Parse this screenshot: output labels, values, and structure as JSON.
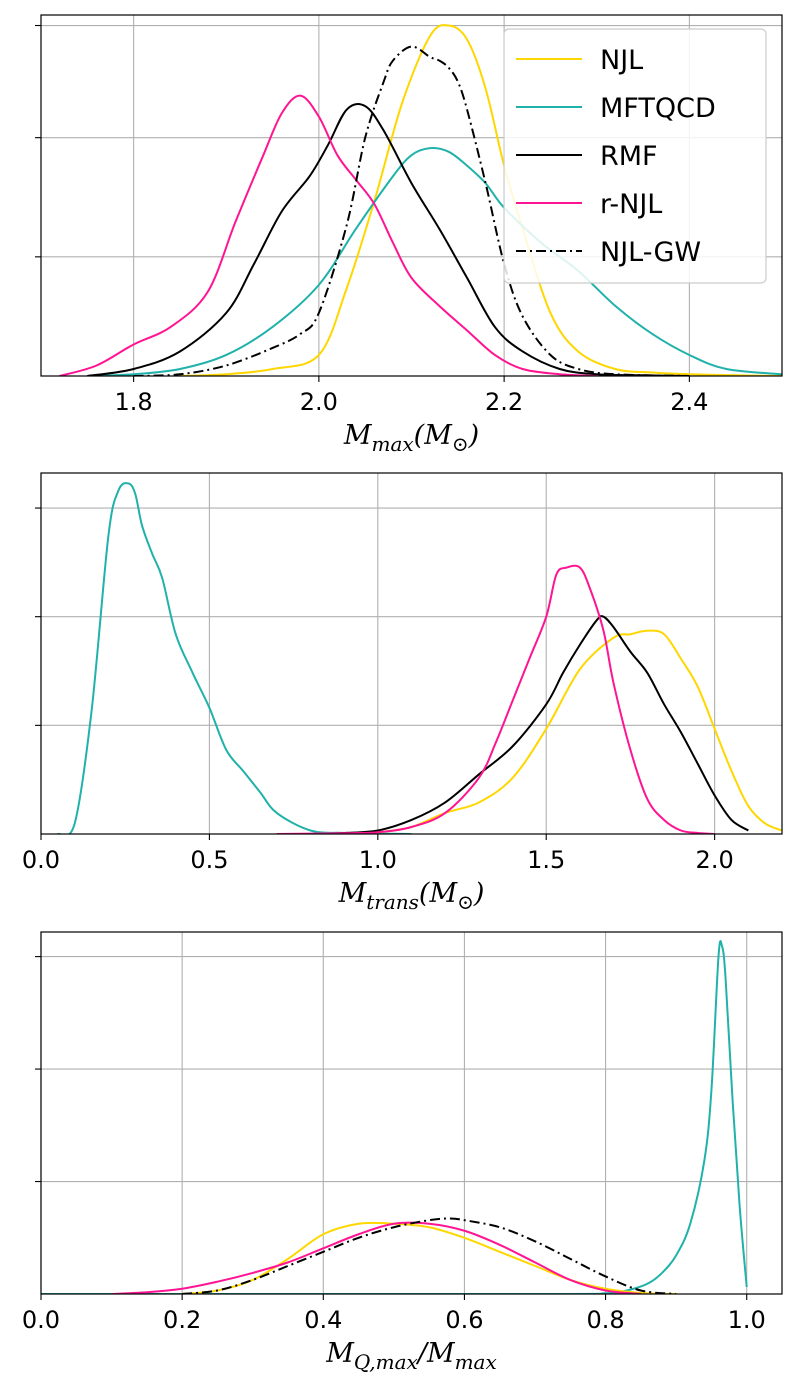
{
  "colors": {
    "NJL": "#FFD700",
    "MFTQCD": "#20B2AA",
    "RMF": "#000000",
    "r-NJL": "#FF1493",
    "NJL-GW": "#000000",
    "grid": "#b0b0b0"
  },
  "chart_data": [
    {
      "type": "line",
      "kind": "kde",
      "xlabel": "M_max(M_⊙)",
      "xlim": [
        1.7,
        2.5
      ],
      "ylim": [
        0,
        1.03
      ],
      "xticks": [
        1.8,
        2.0,
        2.2,
        2.4
      ],
      "xtick_labels": [
        "1.8",
        "2.0",
        "2.2",
        "2.4"
      ],
      "ygrid": [
        0.34,
        0.68,
        1.0
      ],
      "grid": true,
      "y_tick_labels_shown": false,
      "legend": {
        "placement": "top-right",
        "entries": [
          {
            "label": "NJL",
            "style": "solid",
            "color": "#FFD700"
          },
          {
            "label": "MFTQCD",
            "style": "solid",
            "color": "#20B2AA"
          },
          {
            "label": "RMF",
            "style": "solid",
            "color": "#000000"
          },
          {
            "label": "r-NJL",
            "style": "solid",
            "color": "#FF1493"
          },
          {
            "label": "NJL-GW",
            "style": "dashdot",
            "color": "#000000"
          }
        ]
      },
      "series": [
        {
          "name": "NJL",
          "style": "solid",
          "color": "#FFD700",
          "x": [
            1.85,
            1.9,
            1.95,
            2.0,
            2.03,
            2.06,
            2.09,
            2.12,
            2.14,
            2.16,
            2.18,
            2.2,
            2.22,
            2.25,
            2.28,
            2.32,
            2.36,
            2.4,
            2.45,
            2.5
          ],
          "y": [
            0,
            0.005,
            0.02,
            0.06,
            0.25,
            0.5,
            0.78,
            0.97,
            1.0,
            0.96,
            0.82,
            0.6,
            0.42,
            0.18,
            0.07,
            0.02,
            0.01,
            0.005,
            0.002,
            0
          ]
        },
        {
          "name": "MFTQCD",
          "style": "solid",
          "color": "#20B2AA",
          "x": [
            1.75,
            1.8,
            1.85,
            1.9,
            1.95,
            2.0,
            2.04,
            2.08,
            2.1,
            2.12,
            2.14,
            2.16,
            2.18,
            2.2,
            2.24,
            2.28,
            2.32,
            2.36,
            2.4,
            2.44,
            2.5
          ],
          "y": [
            0,
            0.005,
            0.02,
            0.06,
            0.14,
            0.26,
            0.42,
            0.57,
            0.63,
            0.65,
            0.64,
            0.6,
            0.55,
            0.48,
            0.38,
            0.3,
            0.2,
            0.12,
            0.06,
            0.02,
            0.005
          ]
        },
        {
          "name": "RMF",
          "style": "solid",
          "color": "#000000",
          "x": [
            1.75,
            1.8,
            1.85,
            1.9,
            1.93,
            1.96,
            1.99,
            2.01,
            2.03,
            2.05,
            2.07,
            2.1,
            2.13,
            2.16,
            2.19,
            2.22,
            2.26,
            2.3,
            2.35,
            2.4
          ],
          "y": [
            0,
            0.02,
            0.07,
            0.18,
            0.32,
            0.47,
            0.57,
            0.66,
            0.76,
            0.77,
            0.7,
            0.55,
            0.42,
            0.28,
            0.14,
            0.07,
            0.02,
            0.005,
            0.002,
            0
          ]
        },
        {
          "name": "r-NJL",
          "style": "solid",
          "color": "#FF1493",
          "x": [
            1.72,
            1.76,
            1.8,
            1.84,
            1.88,
            1.91,
            1.94,
            1.96,
            1.98,
            2.0,
            2.02,
            2.04,
            2.06,
            2.08,
            2.1,
            2.13,
            2.16,
            2.19,
            2.22,
            2.26,
            2.3
          ],
          "y": [
            0,
            0.03,
            0.09,
            0.14,
            0.24,
            0.44,
            0.63,
            0.75,
            0.8,
            0.74,
            0.63,
            0.56,
            0.49,
            0.38,
            0.28,
            0.2,
            0.13,
            0.06,
            0.02,
            0.005,
            0
          ]
        },
        {
          "name": "NJL-GW",
          "style": "dashdot",
          "color": "#000000",
          "x": [
            1.8,
            1.85,
            1.9,
            1.95,
            1.98,
            2.0,
            2.03,
            2.05,
            2.07,
            2.08,
            2.1,
            2.12,
            2.13,
            2.14,
            2.15,
            2.16,
            2.18,
            2.2,
            2.22,
            2.25,
            2.28,
            2.32,
            2.4
          ],
          "y": [
            0,
            0.005,
            0.03,
            0.08,
            0.12,
            0.18,
            0.43,
            0.68,
            0.84,
            0.9,
            0.94,
            0.91,
            0.9,
            0.88,
            0.84,
            0.76,
            0.55,
            0.32,
            0.17,
            0.06,
            0.02,
            0.005,
            0
          ]
        }
      ]
    },
    {
      "type": "line",
      "kind": "kde",
      "xlabel": "M_trans(M_⊙)",
      "xlim": [
        0.0,
        2.2
      ],
      "ylim": [
        0,
        1.03
      ],
      "xticks": [
        0.0,
        0.5,
        1.0,
        1.5,
        2.0
      ],
      "xtick_labels": [
        "0.0",
        "0.5",
        "1.0",
        "1.5",
        "2.0"
      ],
      "ygrid": [
        0.31,
        0.62,
        0.93
      ],
      "grid": true,
      "y_tick_labels_shown": false,
      "series": [
        {
          "name": "MFTQCD",
          "style": "solid",
          "color": "#20B2AA",
          "x": [
            0.05,
            0.1,
            0.15,
            0.2,
            0.23,
            0.26,
            0.28,
            0.3,
            0.33,
            0.36,
            0.4,
            0.45,
            0.5,
            0.55,
            0.6,
            0.65,
            0.7,
            0.8,
            0.9,
            1.0,
            1.1
          ],
          "y": [
            0,
            0.03,
            0.35,
            0.85,
            0.98,
            1.0,
            0.97,
            0.88,
            0.8,
            0.73,
            0.57,
            0.46,
            0.36,
            0.24,
            0.18,
            0.12,
            0.06,
            0.01,
            0.003,
            0.001,
            0
          ]
        },
        {
          "name": "NJL",
          "style": "solid",
          "color": "#FFD700",
          "x": [
            0.9,
            1.0,
            1.1,
            1.2,
            1.3,
            1.4,
            1.5,
            1.6,
            1.7,
            1.75,
            1.8,
            1.85,
            1.9,
            1.95,
            2.0,
            2.05,
            2.1,
            2.15,
            2.2
          ],
          "y": [
            0,
            0.005,
            0.02,
            0.06,
            0.09,
            0.16,
            0.3,
            0.47,
            0.56,
            0.57,
            0.58,
            0.57,
            0.5,
            0.42,
            0.3,
            0.18,
            0.08,
            0.03,
            0.01
          ]
        },
        {
          "name": "RMF",
          "style": "solid",
          "color": "#000000",
          "x": [
            0.8,
            0.9,
            1.0,
            1.1,
            1.2,
            1.3,
            1.4,
            1.5,
            1.55,
            1.6,
            1.65,
            1.67,
            1.7,
            1.75,
            1.8,
            1.85,
            1.9,
            1.95,
            2.0,
            2.05,
            2.1
          ],
          "y": [
            0,
            0.003,
            0.01,
            0.04,
            0.09,
            0.17,
            0.25,
            0.37,
            0.46,
            0.54,
            0.61,
            0.62,
            0.59,
            0.52,
            0.46,
            0.37,
            0.29,
            0.2,
            0.11,
            0.04,
            0.01
          ]
        },
        {
          "name": "r-NJL",
          "style": "solid",
          "color": "#FF1493",
          "x": [
            0.7,
            0.9,
            1.0,
            1.1,
            1.2,
            1.3,
            1.35,
            1.4,
            1.45,
            1.5,
            1.53,
            1.56,
            1.6,
            1.63,
            1.67,
            1.7,
            1.75,
            1.8,
            1.85,
            1.9,
            1.95,
            2.0
          ],
          "y": [
            0,
            0.002,
            0.005,
            0.02,
            0.06,
            0.16,
            0.26,
            0.38,
            0.5,
            0.62,
            0.74,
            0.76,
            0.76,
            0.7,
            0.58,
            0.43,
            0.24,
            0.1,
            0.04,
            0.01,
            0.003,
            0
          ]
        }
      ]
    },
    {
      "type": "line",
      "kind": "kde",
      "xlabel": "M_{Q,max}/M_max",
      "xlim": [
        0.0,
        1.05
      ],
      "ylim": [
        0,
        1.03
      ],
      "xticks": [
        0.0,
        0.2,
        0.4,
        0.6,
        0.8,
        1.0
      ],
      "xtick_labels": [
        "0.0",
        "0.2",
        "0.4",
        "0.6",
        "0.8",
        "1.0"
      ],
      "ygrid": [
        0.32,
        0.64,
        0.96
      ],
      "grid": true,
      "y_tick_labels_shown": false,
      "series": [
        {
          "name": "MFTQCD",
          "style": "solid",
          "color": "#20B2AA",
          "x": [
            0.0,
            0.7,
            0.8,
            0.83,
            0.86,
            0.88,
            0.9,
            0.92,
            0.94,
            0.95,
            0.96,
            0.965,
            0.97,
            0.98,
            0.99,
            1.0
          ],
          "y": [
            0,
            0,
            0.002,
            0.01,
            0.03,
            0.06,
            0.11,
            0.2,
            0.38,
            0.58,
            0.96,
            0.99,
            0.9,
            0.55,
            0.25,
            0.02
          ]
        },
        {
          "name": "NJL",
          "style": "solid",
          "color": "#FFD700",
          "x": [
            0.2,
            0.25,
            0.3,
            0.35,
            0.4,
            0.45,
            0.5,
            0.55,
            0.6,
            0.65,
            0.7,
            0.75,
            0.8,
            0.85,
            0.9
          ],
          "y": [
            0,
            0.01,
            0.04,
            0.1,
            0.17,
            0.2,
            0.2,
            0.19,
            0.16,
            0.12,
            0.08,
            0.04,
            0.015,
            0.003,
            0
          ]
        },
        {
          "name": "r-NJL",
          "style": "solid",
          "color": "#FF1493",
          "x": [
            0.1,
            0.15,
            0.2,
            0.25,
            0.3,
            0.35,
            0.4,
            0.45,
            0.5,
            0.55,
            0.6,
            0.65,
            0.7,
            0.75,
            0.8,
            0.85
          ],
          "y": [
            0,
            0.005,
            0.015,
            0.035,
            0.06,
            0.09,
            0.13,
            0.17,
            0.2,
            0.2,
            0.18,
            0.14,
            0.09,
            0.04,
            0.01,
            0
          ]
        },
        {
          "name": "NJL-GW",
          "style": "dashdot",
          "color": "#000000",
          "x": [
            0.2,
            0.25,
            0.3,
            0.35,
            0.4,
            0.45,
            0.5,
            0.55,
            0.58,
            0.6,
            0.65,
            0.7,
            0.75,
            0.8,
            0.85,
            0.9
          ],
          "y": [
            0,
            0.01,
            0.04,
            0.08,
            0.12,
            0.16,
            0.19,
            0.21,
            0.215,
            0.21,
            0.19,
            0.15,
            0.1,
            0.05,
            0.01,
            0
          ]
        }
      ]
    }
  ]
}
